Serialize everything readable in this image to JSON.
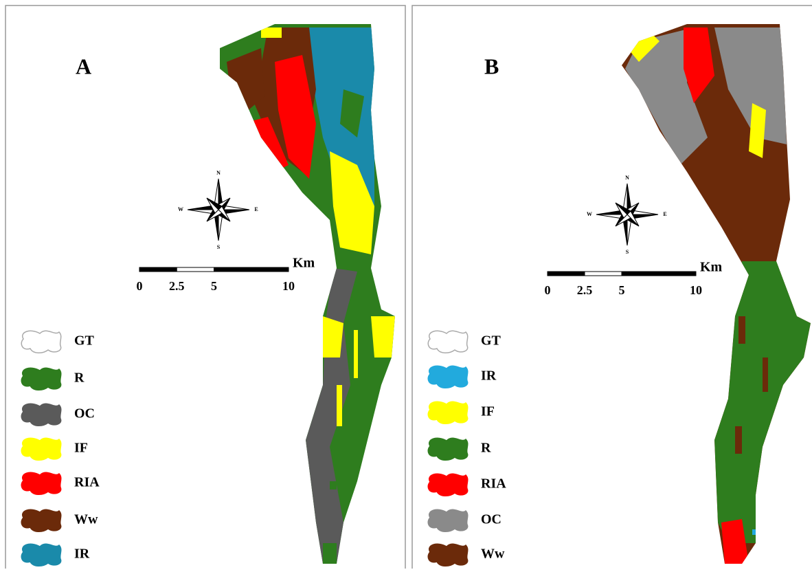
{
  "panels": [
    {
      "label": "A",
      "compass": {
        "n": "N",
        "s": "S",
        "e": "E",
        "w": "W"
      },
      "scale": {
        "ticks": [
          0,
          2.5,
          5,
          10
        ],
        "unit": "Km"
      },
      "legend": [
        {
          "name": "GT",
          "color": "#ffffff"
        },
        {
          "name": "R",
          "color": "#2e7d1e"
        },
        {
          "name": "OC",
          "color": "#5a5a5a"
        },
        {
          "name": "IF",
          "color": "#ffff00"
        },
        {
          "name": "RIA",
          "color": "#ff0000"
        },
        {
          "name": "Ww",
          "color": "#6b2a0a"
        },
        {
          "name": "IR",
          "color": "#1a8aaa"
        }
      ]
    },
    {
      "label": "B",
      "compass": {
        "n": "N",
        "s": "S",
        "e": "E",
        "w": "W"
      },
      "scale": {
        "ticks": [
          0,
          2.5,
          5,
          10
        ],
        "unit": "Km"
      },
      "legend": [
        {
          "name": "GT",
          "color": "#ffffff"
        },
        {
          "name": "IR",
          "color": "#22aadd"
        },
        {
          "name": "IF",
          "color": "#ffff00"
        },
        {
          "name": "R",
          "color": "#2e7d1e"
        },
        {
          "name": "RIA",
          "color": "#ff0000"
        },
        {
          "name": "OC",
          "color": "#8a8a8a"
        },
        {
          "name": "Ww",
          "color": "#6b2a0a"
        }
      ]
    }
  ]
}
